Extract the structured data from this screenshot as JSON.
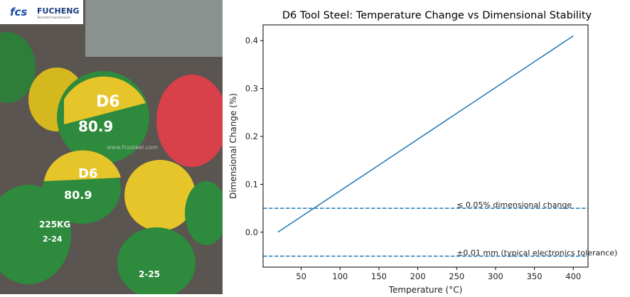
{
  "photo": {
    "logo": {
      "mark": "fcs",
      "name": "FUCHENG",
      "tagline": "Tool steel manufacturer"
    },
    "watermark": "www.fcssteel.com",
    "bar_markings": [
      "D6",
      "80.9",
      "225KG",
      "2-24",
      "2-25"
    ]
  },
  "chart_data": {
    "type": "line",
    "title": "D6 Tool Steel: Temperature Change vs Dimensional Stability",
    "xlabel": "Temperature (°C)",
    "ylabel": "Dimensional Change (%)",
    "xlim": [
      1,
      419
    ],
    "ylim": [
      -0.073,
      0.433
    ],
    "xticks": [
      50,
      100,
      150,
      200,
      250,
      300,
      350,
      400
    ],
    "yticks": [
      0.0,
      0.1,
      0.2,
      0.3,
      0.4
    ],
    "ytick_labels": [
      "0.0",
      "0.1",
      "0.2",
      "0.3",
      "0.4"
    ],
    "grid": false,
    "series": [
      {
        "x": [
          20,
          400
        ],
        "y": [
          0.0,
          0.41
        ],
        "color": "#1f77b4"
      }
    ],
    "hlines": [
      {
        "y": 0.05,
        "label": "≤ 0.05% dimensional change",
        "color": "#1f77b4",
        "style": "dashed"
      },
      {
        "y": -0.05,
        "label": "±0.01 mm (typical electronics tolerance)",
        "color": "#1f77b4",
        "style": "dashed"
      }
    ]
  }
}
